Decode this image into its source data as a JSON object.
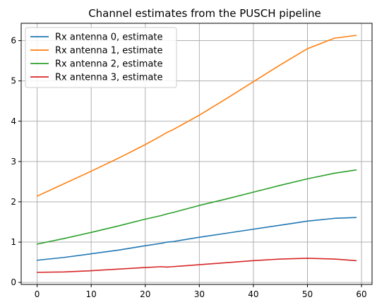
{
  "chart_data": {
    "type": "line",
    "title": "Channel estimates from the PUSCH pipeline",
    "xlabel": "",
    "ylabel": "",
    "xlim": [
      -2.95,
      61.95
    ],
    "ylim": [
      -0.05,
      6.43
    ],
    "grid": true,
    "legend_position": "top-left",
    "xticks": [
      0,
      10,
      20,
      30,
      40,
      50,
      60
    ],
    "yticks": [
      0,
      1,
      2,
      3,
      4,
      5,
      6
    ],
    "series": [
      {
        "name": "Rx antenna 0, estimate",
        "color": "#1f77b4",
        "x": [
          0,
          5,
          10,
          15,
          20,
          23,
          24,
          25,
          30,
          35,
          40,
          45,
          50,
          55,
          59
        ],
        "y": [
          0.55,
          0.62,
          0.71,
          0.8,
          0.91,
          0.97,
          1.0,
          1.01,
          1.12,
          1.22,
          1.32,
          1.42,
          1.52,
          1.59,
          1.61
        ]
      },
      {
        "name": "Rx antenna 1, estimate",
        "color": "#ff7f0e",
        "x": [
          0,
          5,
          10,
          15,
          20,
          23,
          24,
          25,
          30,
          35,
          40,
          45,
          50,
          55,
          59
        ],
        "y": [
          2.14,
          2.45,
          2.76,
          3.08,
          3.42,
          3.64,
          3.72,
          3.78,
          4.15,
          4.56,
          4.98,
          5.4,
          5.8,
          6.06,
          6.13
        ]
      },
      {
        "name": "Rx antenna 2, estimate",
        "color": "#2ca02c",
        "x": [
          0,
          5,
          10,
          15,
          20,
          23,
          24,
          25,
          30,
          35,
          40,
          45,
          50,
          55,
          59
        ],
        "y": [
          0.95,
          1.09,
          1.24,
          1.4,
          1.57,
          1.66,
          1.7,
          1.73,
          1.91,
          2.07,
          2.24,
          2.41,
          2.57,
          2.71,
          2.79
        ]
      },
      {
        "name": "Rx antenna 3, estimate",
        "color": "#d62728",
        "x": [
          0,
          5,
          10,
          15,
          20,
          23,
          24,
          25,
          30,
          35,
          40,
          45,
          50,
          55,
          59
        ],
        "y": [
          0.25,
          0.26,
          0.29,
          0.33,
          0.37,
          0.39,
          0.38,
          0.39,
          0.44,
          0.49,
          0.54,
          0.58,
          0.6,
          0.58,
          0.54
        ]
      }
    ]
  }
}
